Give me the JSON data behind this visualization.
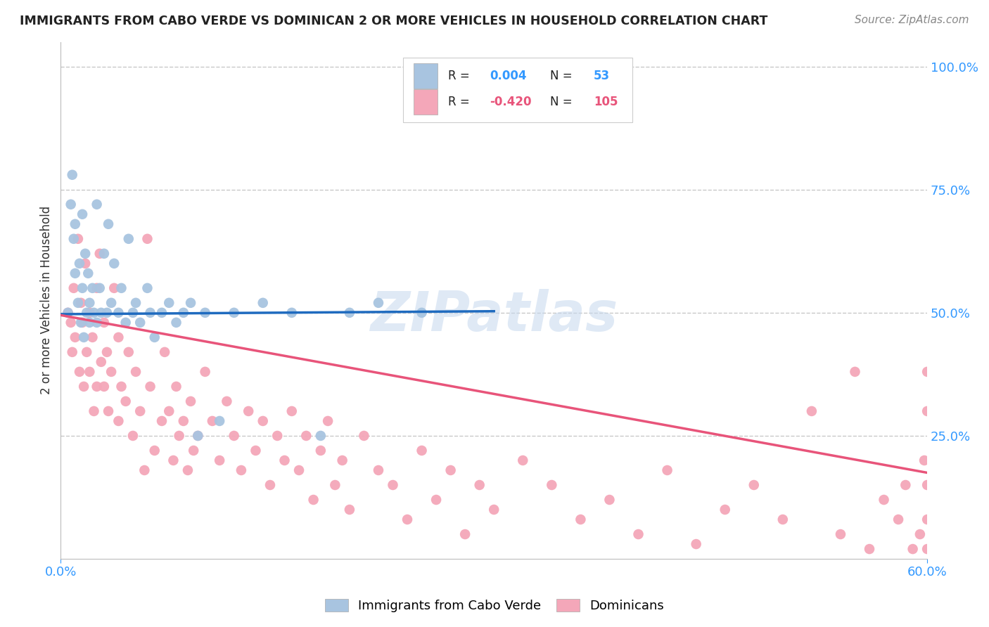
{
  "title": "IMMIGRANTS FROM CABO VERDE VS DOMINICAN 2 OR MORE VEHICLES IN HOUSEHOLD CORRELATION CHART",
  "source": "Source: ZipAtlas.com",
  "ylabel": "2 or more Vehicles in Household",
  "cabo_verde_color": "#a8c4e0",
  "cabo_verde_line_color": "#1f6bbf",
  "dominican_color": "#f4a7b9",
  "dominican_line_color": "#e8547a",
  "cabo_verde_R": 0.004,
  "cabo_verde_N": 53,
  "dominican_R": -0.42,
  "dominican_N": 105,
  "x_min": 0.0,
  "x_max": 0.6,
  "y_min": 0.0,
  "y_max": 1.05,
  "cabo_verde_x": [
    0.005,
    0.007,
    0.008,
    0.009,
    0.01,
    0.01,
    0.012,
    0.013,
    0.014,
    0.015,
    0.015,
    0.016,
    0.017,
    0.018,
    0.019,
    0.02,
    0.02,
    0.022,
    0.023,
    0.025,
    0.025,
    0.027,
    0.028,
    0.03,
    0.032,
    0.033,
    0.035,
    0.037,
    0.04,
    0.042,
    0.045,
    0.047,
    0.05,
    0.052,
    0.055,
    0.06,
    0.062,
    0.065,
    0.07,
    0.075,
    0.08,
    0.085,
    0.09,
    0.095,
    0.1,
    0.11,
    0.12,
    0.14,
    0.16,
    0.18,
    0.2,
    0.22,
    0.25
  ],
  "cabo_verde_y": [
    0.5,
    0.72,
    0.78,
    0.65,
    0.58,
    0.68,
    0.52,
    0.6,
    0.48,
    0.55,
    0.7,
    0.45,
    0.62,
    0.5,
    0.58,
    0.48,
    0.52,
    0.55,
    0.5,
    0.72,
    0.48,
    0.55,
    0.5,
    0.62,
    0.5,
    0.68,
    0.52,
    0.6,
    0.5,
    0.55,
    0.48,
    0.65,
    0.5,
    0.52,
    0.48,
    0.55,
    0.5,
    0.45,
    0.5,
    0.52,
    0.48,
    0.5,
    0.52,
    0.25,
    0.5,
    0.28,
    0.5,
    0.52,
    0.5,
    0.25,
    0.5,
    0.52,
    0.5
  ],
  "dominican_x": [
    0.005,
    0.007,
    0.008,
    0.009,
    0.01,
    0.012,
    0.013,
    0.014,
    0.015,
    0.016,
    0.017,
    0.018,
    0.02,
    0.02,
    0.022,
    0.023,
    0.025,
    0.025,
    0.027,
    0.028,
    0.03,
    0.03,
    0.032,
    0.033,
    0.035,
    0.037,
    0.04,
    0.04,
    0.042,
    0.045,
    0.047,
    0.05,
    0.052,
    0.055,
    0.058,
    0.06,
    0.062,
    0.065,
    0.07,
    0.072,
    0.075,
    0.078,
    0.08,
    0.082,
    0.085,
    0.088,
    0.09,
    0.092,
    0.095,
    0.1,
    0.105,
    0.11,
    0.115,
    0.12,
    0.125,
    0.13,
    0.135,
    0.14,
    0.145,
    0.15,
    0.155,
    0.16,
    0.165,
    0.17,
    0.175,
    0.18,
    0.185,
    0.19,
    0.195,
    0.2,
    0.21,
    0.22,
    0.23,
    0.24,
    0.25,
    0.26,
    0.27,
    0.28,
    0.29,
    0.3,
    0.32,
    0.34,
    0.36,
    0.38,
    0.4,
    0.42,
    0.44,
    0.46,
    0.48,
    0.5,
    0.52,
    0.54,
    0.55,
    0.56,
    0.57,
    0.58,
    0.585,
    0.59,
    0.595,
    0.598,
    0.6,
    0.6,
    0.6,
    0.6,
    0.6
  ],
  "dominican_y": [
    0.5,
    0.48,
    0.42,
    0.55,
    0.45,
    0.65,
    0.38,
    0.52,
    0.48,
    0.35,
    0.6,
    0.42,
    0.5,
    0.38,
    0.45,
    0.3,
    0.55,
    0.35,
    0.62,
    0.4,
    0.35,
    0.48,
    0.42,
    0.3,
    0.38,
    0.55,
    0.28,
    0.45,
    0.35,
    0.32,
    0.42,
    0.25,
    0.38,
    0.3,
    0.18,
    0.65,
    0.35,
    0.22,
    0.28,
    0.42,
    0.3,
    0.2,
    0.35,
    0.25,
    0.28,
    0.18,
    0.32,
    0.22,
    0.25,
    0.38,
    0.28,
    0.2,
    0.32,
    0.25,
    0.18,
    0.3,
    0.22,
    0.28,
    0.15,
    0.25,
    0.2,
    0.3,
    0.18,
    0.25,
    0.12,
    0.22,
    0.28,
    0.15,
    0.2,
    0.1,
    0.25,
    0.18,
    0.15,
    0.08,
    0.22,
    0.12,
    0.18,
    0.05,
    0.15,
    0.1,
    0.2,
    0.15,
    0.08,
    0.12,
    0.05,
    0.18,
    0.03,
    0.1,
    0.15,
    0.08,
    0.3,
    0.05,
    0.38,
    0.02,
    0.12,
    0.08,
    0.15,
    0.02,
    0.05,
    0.2,
    0.38,
    0.3,
    0.15,
    0.02,
    0.08
  ],
  "watermark": "ZIPatlas",
  "background_color": "#ffffff",
  "grid_color": "#c8c8c8",
  "cabo_verde_trend_x": [
    0.0,
    0.3
  ],
  "cabo_verde_trend_y": [
    0.497,
    0.503
  ],
  "dominican_trend_x": [
    0.0,
    0.6
  ],
  "dominican_trend_y": [
    0.495,
    0.175
  ]
}
